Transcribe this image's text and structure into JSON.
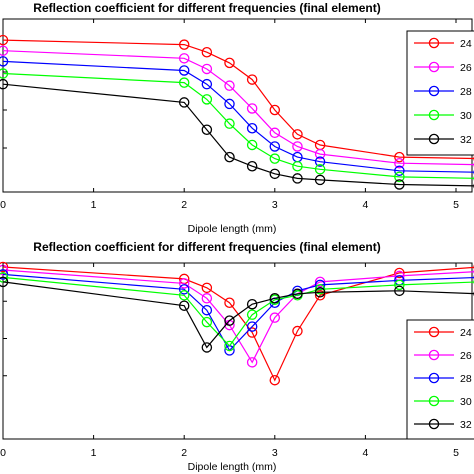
{
  "chart_data": [
    {
      "type": "line",
      "title": "Reflection coefficient for different frequencies (final element)",
      "xlabel": "Dipole length (mm)",
      "ylabel": "",
      "xlim": [
        0,
        5.4
      ],
      "ylim": [
        0,
        1
      ],
      "xticks": [
        "0",
        "1",
        "2",
        "3",
        "4",
        "5"
      ],
      "grid": false,
      "legend_position": "right",
      "x": [
        0,
        2,
        2.25,
        2.5,
        2.75,
        3,
        3.25,
        3.5,
        4.375,
        5.25
      ],
      "series": [
        {
          "name": "24",
          "color": "#ff0000",
          "values": [
            0.96,
            0.93,
            0.88,
            0.81,
            0.7,
            0.5,
            0.34,
            0.27,
            0.19,
            0.18
          ]
        },
        {
          "name": "26",
          "color": "#ff00ff",
          "values": [
            0.89,
            0.84,
            0.77,
            0.66,
            0.51,
            0.35,
            0.26,
            0.21,
            0.15,
            0.14
          ]
        },
        {
          "name": "28",
          "color": "#0000ff",
          "values": [
            0.82,
            0.76,
            0.67,
            0.54,
            0.38,
            0.26,
            0.19,
            0.16,
            0.1,
            0.09
          ]
        },
        {
          "name": "30",
          "color": "#00ff00",
          "values": [
            0.74,
            0.68,
            0.57,
            0.41,
            0.27,
            0.18,
            0.13,
            0.11,
            0.06,
            0.05
          ]
        },
        {
          "name": "32",
          "color": "#000000",
          "values": [
            0.67,
            0.55,
            0.37,
            0.19,
            0.13,
            0.08,
            0.05,
            0.04,
            0.01,
            0.0
          ]
        }
      ]
    },
    {
      "type": "line",
      "title": "Reflection coefficient for different frequencies (final element)",
      "xlabel": "Dipole length (mm)",
      "ylabel": "",
      "xlim": [
        0,
        5.4
      ],
      "ylim": [
        0,
        1
      ],
      "xticks": [
        "0",
        "1",
        "2",
        "3",
        "4",
        "5"
      ],
      "grid": false,
      "legend_position": "bottom-right",
      "x": [
        0,
        2,
        2.25,
        2.5,
        2.75,
        3,
        3.25,
        3.5,
        4.375,
        5.25
      ],
      "series": [
        {
          "name": "24",
          "color": "#ff0000",
          "values": [
            0.98,
            0.9,
            0.84,
            0.74,
            0.54,
            0.22,
            0.55,
            0.79,
            0.94,
            0.98
          ]
        },
        {
          "name": "26",
          "color": "#ff00ff",
          "values": [
            0.96,
            0.87,
            0.77,
            0.59,
            0.34,
            0.64,
            0.8,
            0.88,
            0.92,
            0.95
          ]
        },
        {
          "name": "28",
          "color": "#0000ff",
          "values": [
            0.93,
            0.83,
            0.69,
            0.42,
            0.58,
            0.74,
            0.82,
            0.86,
            0.89,
            0.91
          ]
        },
        {
          "name": "30",
          "color": "#00ff00",
          "values": [
            0.91,
            0.79,
            0.61,
            0.45,
            0.66,
            0.76,
            0.79,
            0.83,
            0.86,
            0.88
          ]
        },
        {
          "name": "32",
          "color": "#000000",
          "values": [
            0.88,
            0.72,
            0.44,
            0.62,
            0.73,
            0.77,
            0.8,
            0.81,
            0.82,
            0.8
          ]
        }
      ]
    }
  ]
}
